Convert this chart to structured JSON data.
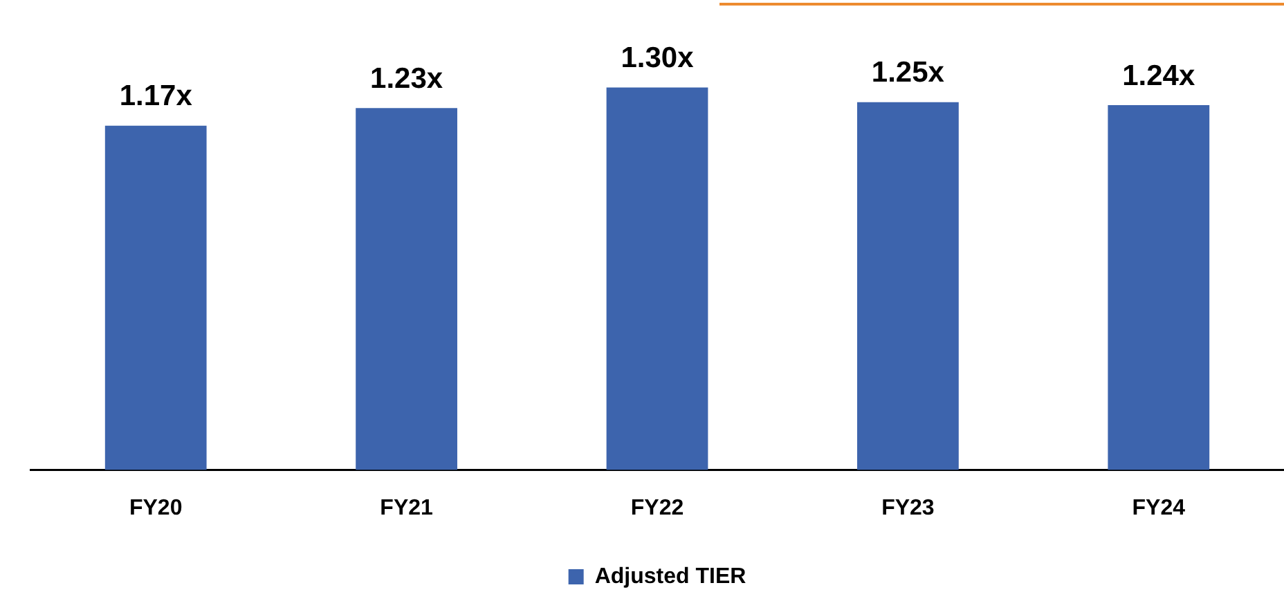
{
  "chart_data": {
    "type": "bar",
    "categories": [
      "FY20",
      "FY21",
      "FY22",
      "FY23",
      "FY24"
    ],
    "series": [
      {
        "name": "Adjusted TIER",
        "color": "#3d64ad",
        "values": [
          1.17,
          1.23,
          1.3,
          1.25,
          1.24
        ],
        "value_labels": [
          "1.17x",
          "1.23x",
          "1.30x",
          "1.25x",
          "1.24x"
        ]
      }
    ],
    "tick_labels": "x",
    "grid": false,
    "legend": "bottom"
  }
}
